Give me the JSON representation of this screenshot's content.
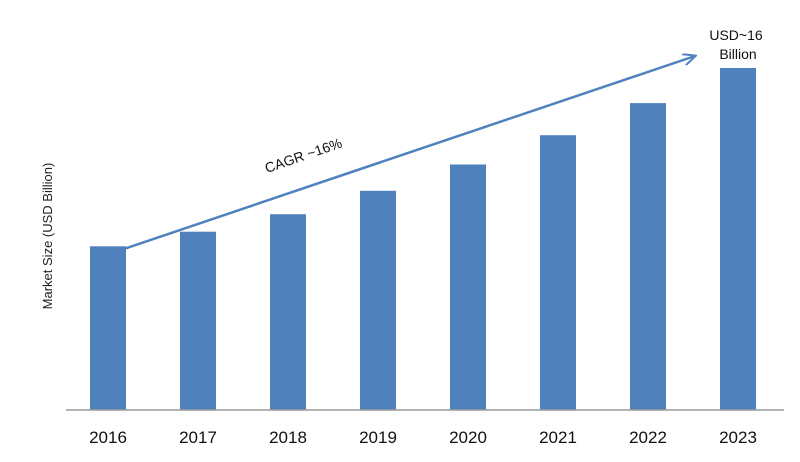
{
  "chart_data": {
    "type": "bar",
    "title": "",
    "xlabel": "",
    "ylabel": "Market Size (USD Billion)",
    "categories": [
      "2016",
      "2017",
      "2018",
      "2019",
      "2020",
      "2021",
      "2022",
      "2023"
    ],
    "values": [
      5.6,
      6.1,
      6.7,
      7.5,
      8.4,
      9.4,
      10.5,
      11.7
    ],
    "ylim": [
      0,
      13.0
    ],
    "bar_color": "#4f81bd",
    "grid": false,
    "legend": "none",
    "annotations": {
      "cagr": "CAGR ~16%",
      "end_value_line1": "USD~16",
      "end_value_line2": "Billion"
    }
  }
}
